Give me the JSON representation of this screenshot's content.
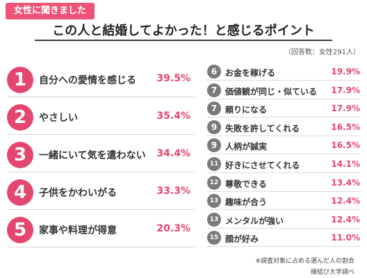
{
  "header": {
    "tag": "女性に聞きました",
    "title": "この人と結婚してよかった！と感じるポイント",
    "respondents": "（回答数：女性291人）"
  },
  "chart_data": {
    "type": "table",
    "columns": [
      "rank",
      "item",
      "percent"
    ],
    "rows": [
      {
        "rank": "1",
        "item": "自分への愛情を感じる",
        "value": 39.5,
        "label": "39.5%"
      },
      {
        "rank": "2",
        "item": "やさしい",
        "value": 35.4,
        "label": "35.4%"
      },
      {
        "rank": "3",
        "item": "一緒にいて気を遣わない",
        "value": 34.4,
        "label": "34.4%"
      },
      {
        "rank": "4",
        "item": "子供をかわいがる",
        "value": 33.3,
        "label": "33.3%"
      },
      {
        "rank": "5",
        "item": "家事や料理が得意",
        "value": 20.3,
        "label": "20.3%"
      },
      {
        "rank": "6",
        "item": "お金を稼げる",
        "value": 19.9,
        "label": "19.9%"
      },
      {
        "rank": "7",
        "item": "価値観が同じ・似ている",
        "value": 17.9,
        "label": "17.9%"
      },
      {
        "rank": "7",
        "item": "頼りになる",
        "value": 17.9,
        "label": "17.9%"
      },
      {
        "rank": "9",
        "item": "失敗を許してくれる",
        "value": 16.5,
        "label": "16.5%"
      },
      {
        "rank": "9",
        "item": "人柄が誠実",
        "value": 16.5,
        "label": "16.5%"
      },
      {
        "rank": "11",
        "item": "好きにさせてくれる",
        "value": 14.1,
        "label": "14.1%"
      },
      {
        "rank": "12",
        "item": "尊敬できる",
        "value": 13.4,
        "label": "13.4%"
      },
      {
        "rank": "13",
        "item": "趣味が合う",
        "value": 12.4,
        "label": "12.4%"
      },
      {
        "rank": "13",
        "item": "メンタルが強い",
        "value": 12.4,
        "label": "12.4%"
      },
      {
        "rank": "15",
        "item": "顔が好み",
        "value": 11.0,
        "label": "11.0%"
      }
    ],
    "unit": "%"
  },
  "footer": {
    "note": "※調査対象に占める選んだ人の割合",
    "credit": "縁結び大学調べ"
  },
  "colors": {
    "accent": "#e5466e",
    "tag": "#ee5478",
    "rank_minor": "#7a7a7a"
  }
}
